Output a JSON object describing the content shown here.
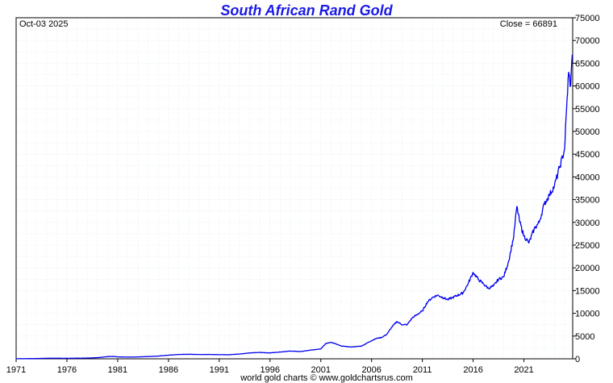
{
  "chart_data": {
    "type": "line",
    "title": "South African Rand Gold",
    "date_label": "Oct-03  2025",
    "close_label": "Close = 66891",
    "credit": "world gold charts © www.goldchartsrus.com",
    "x_ticks": [
      "1971",
      "1976",
      "1981",
      "1986",
      "1991",
      "1996",
      "2001",
      "2006",
      "2011",
      "2016",
      "2021"
    ],
    "y_ticks": [
      "0",
      "5000",
      "10000",
      "15000",
      "20000",
      "25000",
      "30000",
      "35000",
      "40000",
      "45000",
      "50000",
      "55000",
      "60000",
      "65000",
      "70000",
      "75000"
    ],
    "xlim": [
      1971,
      2025.8
    ],
    "ylim": [
      0,
      75000
    ],
    "grid": true,
    "y_axis_side": "right",
    "colors": {
      "title": "#1a1ae6",
      "line": "#0000ee",
      "grid": "#d6e6f0"
    },
    "series": [
      {
        "x": [
          1971.0,
          1972.0,
          1973.0,
          1974.0,
          1975.0,
          1976.0,
          1977.0,
          1978.0,
          1979.0,
          1980.0,
          1980.5,
          1981.0,
          1982.0,
          1983.0,
          1984.0,
          1985.0,
          1986.0,
          1987.0,
          1988.0,
          1989.0,
          1990.0,
          1991.0,
          1992.0,
          1993.0,
          1994.0,
          1995.0,
          1996.0,
          1997.0,
          1998.0,
          1999.0,
          2000.0,
          2001.0,
          2001.5,
          2002.0,
          2002.5,
          2003.0,
          2004.0,
          2005.0,
          2006.0,
          2006.5,
          2007.0,
          2007.5,
          2008.0,
          2008.5,
          2009.0,
          2009.5,
          2010.0,
          2011.0,
          2011.5,
          2012.0,
          2012.5,
          2013.0,
          2013.5,
          2014.0,
          2015.0,
          2015.5,
          2016.0,
          2016.5,
          2017.0,
          2017.5,
          2018.0,
          2018.5,
          2019.0,
          2019.5,
          2020.0,
          2020.3,
          2020.6,
          2021.0,
          2021.5,
          2022.0,
          2022.5,
          2023.0,
          2023.5,
          2024.0,
          2024.5,
          2025.0,
          2025.2,
          2025.4,
          2025.6,
          2025.76
        ],
        "y": [
          25,
          40,
          60,
          120,
          130,
          110,
          140,
          170,
          250,
          480,
          520,
          420,
          380,
          410,
          500,
          600,
          800,
          950,
          1000,
          950,
          950,
          920,
          900,
          1050,
          1300,
          1400,
          1300,
          1500,
          1700,
          1600,
          1900,
          2200,
          3400,
          3600,
          3300,
          2800,
          2600,
          2800,
          4000,
          4500,
          4700,
          5400,
          7000,
          8200,
          7500,
          7500,
          9000,
          10500,
          12500,
          13500,
          14000,
          13500,
          13000,
          13500,
          14500,
          16500,
          19000,
          17500,
          16500,
          15500,
          16000,
          17500,
          18000,
          21500,
          27000,
          33500,
          30000,
          27000,
          25500,
          28500,
          30000,
          34000,
          36000,
          38000,
          42000,
          46000,
          55000,
          63000,
          60000,
          66891
        ]
      }
    ]
  }
}
